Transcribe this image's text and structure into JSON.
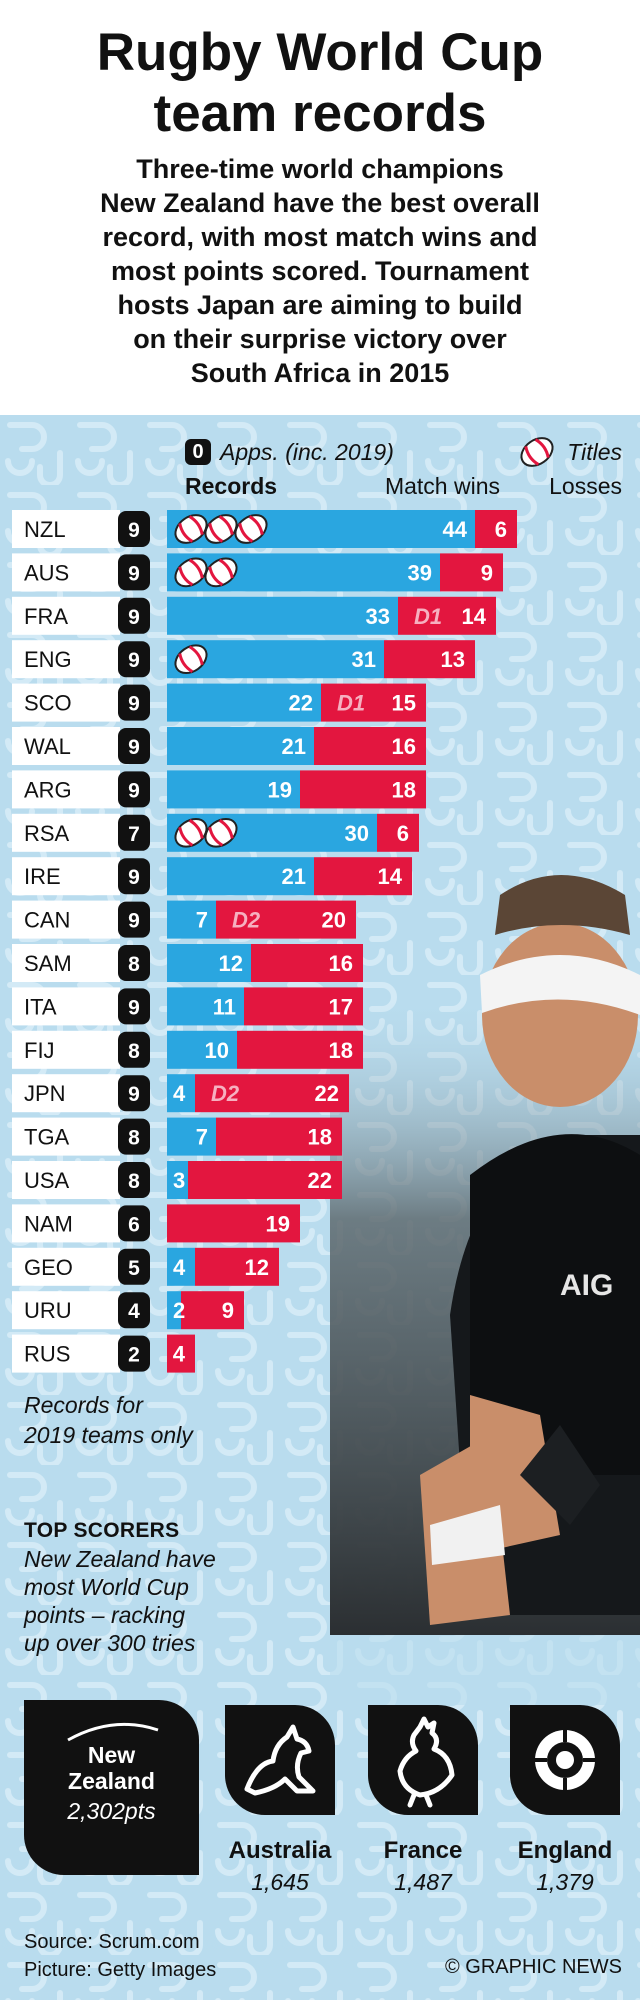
{
  "header": {
    "title_lines": [
      "Rugby World Cup",
      "team records"
    ],
    "subtitle_lines": [
      "Three-time world champions",
      "New Zealand have the best overall",
      "record, with most match wins and",
      "most points scored. Tournament",
      "hosts Japan are aiming to build",
      "on their surprise victory over",
      "South Africa in 2015"
    ]
  },
  "legend": {
    "apps_key": "0",
    "apps_label": "Apps. (inc. 2019)",
    "titles_label": "Titles",
    "col_records": "Records",
    "col_wins": "Match wins",
    "col_losses": "Losses"
  },
  "colors": {
    "wins": "#2aa6e0",
    "losses": "#e3163f",
    "background": "#b9dcee",
    "badge": "#111111"
  },
  "chart_data": {
    "type": "bar",
    "orientation": "horizontal",
    "stacked": true,
    "series": [
      {
        "name": "Match wins",
        "color": "#2aa6e0",
        "values": [
          44,
          39,
          33,
          31,
          22,
          21,
          19,
          30,
          21,
          7,
          12,
          11,
          10,
          4,
          7,
          3,
          0,
          4,
          2,
          0
        ]
      },
      {
        "name": "Losses",
        "color": "#e3163f",
        "values": [
          6,
          9,
          14,
          13,
          15,
          16,
          18,
          6,
          14,
          20,
          16,
          17,
          18,
          22,
          18,
          22,
          19,
          12,
          9,
          4
        ]
      }
    ],
    "rows": [
      {
        "team": "NZL",
        "apps": "9",
        "titles": 3,
        "wins": 44,
        "draws": "",
        "losses": 6
      },
      {
        "team": "AUS",
        "apps": "9",
        "titles": 2,
        "wins": 39,
        "draws": "",
        "losses": 9
      },
      {
        "team": "FRA",
        "apps": "9",
        "titles": 0,
        "wins": 33,
        "draws": "D1",
        "losses": 14
      },
      {
        "team": "ENG",
        "apps": "9",
        "titles": 1,
        "wins": 31,
        "draws": "",
        "losses": 13
      },
      {
        "team": "SCO",
        "apps": "9",
        "titles": 0,
        "wins": 22,
        "draws": "D1",
        "losses": 15
      },
      {
        "team": "WAL",
        "apps": "9",
        "titles": 0,
        "wins": 21,
        "draws": "",
        "losses": 16
      },
      {
        "team": "ARG",
        "apps": "9",
        "titles": 0,
        "wins": 19,
        "draws": "",
        "losses": 18
      },
      {
        "team": "RSA",
        "apps": "7",
        "titles": 2,
        "wins": 30,
        "draws": "",
        "losses": 6
      },
      {
        "team": "IRE",
        "apps": "9",
        "titles": 0,
        "wins": 21,
        "draws": "",
        "losses": 14
      },
      {
        "team": "CAN",
        "apps": "9",
        "titles": 0,
        "wins": 7,
        "draws": "D2",
        "losses": 20
      },
      {
        "team": "SAM",
        "apps": "8",
        "titles": 0,
        "wins": 12,
        "draws": "",
        "losses": 16
      },
      {
        "team": "ITA",
        "apps": "9",
        "titles": 0,
        "wins": 11,
        "draws": "",
        "losses": 17
      },
      {
        "team": "FIJ",
        "apps": "8",
        "titles": 0,
        "wins": 10,
        "draws": "",
        "losses": 18
      },
      {
        "team": "JPN",
        "apps": "9",
        "titles": 0,
        "wins": 4,
        "draws": "D2",
        "losses": 22
      },
      {
        "team": "TGA",
        "apps": "8",
        "titles": 0,
        "wins": 7,
        "draws": "",
        "losses": 18
      },
      {
        "team": "USA",
        "apps": "8",
        "titles": 0,
        "wins": 3,
        "draws": "",
        "losses": 22
      },
      {
        "team": "NAM",
        "apps": "6",
        "titles": 0,
        "wins": 0,
        "draws": "",
        "losses": 19
      },
      {
        "team": "GEO",
        "apps": "5",
        "titles": 0,
        "wins": 4,
        "draws": "",
        "losses": 12
      },
      {
        "team": "URU",
        "apps": "4",
        "titles": 0,
        "wins": 2,
        "draws": "",
        "losses": 9
      },
      {
        "team": "RUS",
        "apps": "2",
        "titles": 0,
        "wins": 0,
        "draws": "",
        "losses": 4
      }
    ]
  },
  "note_lines": [
    "Records for",
    "2019 teams only"
  ],
  "top_scorers": {
    "heading": "TOP SCORERS",
    "body_lines": [
      "New Zealand have",
      "most World Cup",
      "points – racking",
      "up over 300 tries"
    ],
    "leader": {
      "name_lines": [
        "New",
        "Zealand"
      ],
      "points": "2,302pts",
      "icon": "fern-icon"
    },
    "others": [
      {
        "name": "Australia",
        "points": "1,645",
        "icon": "wallaby-icon"
      },
      {
        "name": "France",
        "points": "1,487",
        "icon": "rooster-icon"
      },
      {
        "name": "England",
        "points": "1,379",
        "icon": "rose-icon"
      }
    ]
  },
  "footer": {
    "source": "Source: Scrum.com",
    "picture": "Picture: Getty Images",
    "credit": "© GRAPHIC NEWS"
  }
}
